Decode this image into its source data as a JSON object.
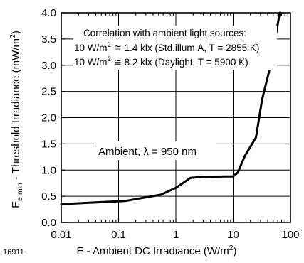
{
  "figure_number": "16911",
  "chart_data": {
    "type": "line",
    "x_scale": "log",
    "y_scale": "linear",
    "xlim": [
      0.01,
      100
    ],
    "ylim": [
      0.0,
      4.0
    ],
    "grid": true,
    "x_ticks": [
      {
        "value": 0.01,
        "label": "0.01"
      },
      {
        "value": 0.1,
        "label": "0.1"
      },
      {
        "value": 1,
        "label": "1"
      },
      {
        "value": 10,
        "label": "10"
      },
      {
        "value": 100,
        "label": "100"
      }
    ],
    "y_ticks": [
      {
        "value": 0.0,
        "label": "0.0"
      },
      {
        "value": 0.5,
        "label": "0.5"
      },
      {
        "value": 1.0,
        "label": "1.0"
      },
      {
        "value": 1.5,
        "label": "1.5"
      },
      {
        "value": 2.0,
        "label": "2.0"
      },
      {
        "value": 2.5,
        "label": "2.5"
      },
      {
        "value": 3.0,
        "label": "3.0"
      },
      {
        "value": 3.5,
        "label": "3.5"
      },
      {
        "value": 4.0,
        "label": "4.0"
      }
    ],
    "xlabel": {
      "main": "E - Ambient DC Irradiance (W/m",
      "sup": "2",
      "tail": ")"
    },
    "ylabel": {
      "E": "E",
      "sub": "e min",
      "main": " - Threshold Irradiance (mW/m",
      "sup": "2",
      "tail": ")"
    },
    "annotations": {
      "correlation_title": "Correlation with ambient light sources:",
      "line1": {
        "pre": "10 W/m",
        "sup": "2",
        "post": " ≅ 1.4 klx (Std.illum.A, T = 2855 K)"
      },
      "line2": {
        "pre": "10 W/m",
        "sup": "2",
        "post": " ≅ 8.2 klx (Daylight, T = 5900 K)"
      },
      "ambient": "Ambient, λ = 950 nm"
    },
    "series": [
      {
        "color": "#000000",
        "x": [
          0.01,
          0.13,
          0.55,
          1.0,
          1.8,
          3.0,
          10.0,
          12.0,
          16.0,
          25.0,
          32.0,
          45.0,
          65.0
        ],
        "y": [
          0.35,
          0.41,
          0.53,
          0.66,
          0.85,
          0.87,
          0.88,
          0.95,
          1.27,
          1.62,
          2.35,
          3.0,
          4.0
        ]
      }
    ]
  }
}
